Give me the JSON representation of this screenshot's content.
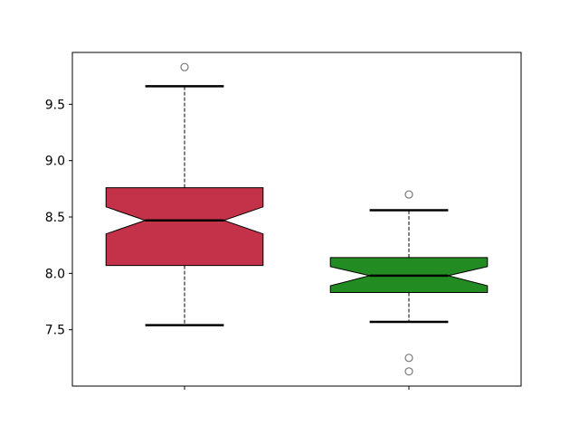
{
  "chart_data": {
    "type": "boxplot",
    "notched": true,
    "title": "",
    "xlabel": "",
    "ylabel": "",
    "ylim": [
      7.0,
      9.96
    ],
    "xlim": [
      0.5,
      2.5
    ],
    "yticks": [
      7.5,
      8.0,
      8.5,
      9.0,
      9.5
    ],
    "ytick_labels": [
      "7.5",
      "8.0",
      "8.5",
      "9.0",
      "9.5"
    ],
    "xtick_labels": [
      "",
      ""
    ],
    "grid": false,
    "boxes": [
      {
        "position": 1,
        "color": "#c33248",
        "q1": 8.07,
        "median": 8.47,
        "q3": 8.76,
        "notch_low": 8.35,
        "notch_high": 8.59,
        "whisker_low": 7.54,
        "whisker_high": 9.66,
        "outliers": [
          9.83
        ]
      },
      {
        "position": 2,
        "color": "#228b22",
        "q1": 7.83,
        "median": 7.98,
        "q3": 8.14,
        "notch_low": 7.89,
        "notch_high": 8.06,
        "whisker_low": 7.57,
        "whisker_high": 8.56,
        "outliers": [
          8.7,
          7.25,
          7.13
        ]
      }
    ]
  }
}
